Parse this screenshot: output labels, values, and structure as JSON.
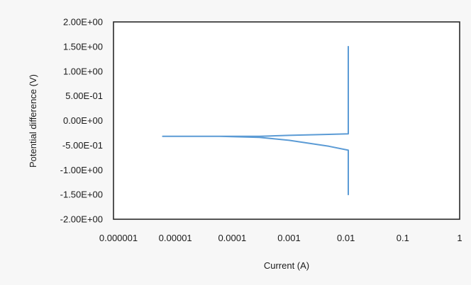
{
  "chart_data": {
    "type": "line",
    "title": "",
    "xlabel": "Current (A)",
    "ylabel": "Potential difference (V)",
    "x_scale": "log",
    "xlim": [
      1e-06,
      1
    ],
    "ylim": [
      -2.0,
      2.0
    ],
    "x_ticks": [
      {
        "value": 1e-06,
        "label": "0.000001"
      },
      {
        "value": 1e-05,
        "label": "0.00001"
      },
      {
        "value": 0.0001,
        "label": "0.0001"
      },
      {
        "value": 0.001,
        "label": "0.001"
      },
      {
        "value": 0.01,
        "label": "0.01"
      },
      {
        "value": 0.1,
        "label": "0.1"
      },
      {
        "value": 1,
        "label": "1"
      }
    ],
    "y_ticks": [
      {
        "value": 2.0,
        "label": "2.00E+00"
      },
      {
        "value": 1.5,
        "label": "1.50E+00"
      },
      {
        "value": 1.0,
        "label": "1.00E+00"
      },
      {
        "value": 0.5,
        "label": "5.00E-01"
      },
      {
        "value": 0.0,
        "label": "0.00E+00"
      },
      {
        "value": -0.5,
        "label": "-5.00E-01"
      },
      {
        "value": -1.0,
        "label": "-1.00E+00"
      },
      {
        "value": -1.5,
        "label": "-1.50E+00"
      },
      {
        "value": -2.0,
        "label": "-2.00E+00"
      }
    ],
    "grid": false,
    "legend": "none",
    "series": [
      {
        "color": "#5b9bd5",
        "points": [
          {
            "x": 0.011,
            "y": -1.5
          },
          {
            "x": 0.011,
            "y": -0.6
          },
          {
            "x": 0.005,
            "y": -0.52
          },
          {
            "x": 0.001,
            "y": -0.4
          },
          {
            "x": 0.0003,
            "y": -0.34
          },
          {
            "x": 6e-05,
            "y": -0.32
          },
          {
            "x": 6e-06,
            "y": -0.32
          },
          {
            "x": 6e-05,
            "y": -0.32
          },
          {
            "x": 0.0003,
            "y": -0.32
          },
          {
            "x": 0.001,
            "y": -0.3
          },
          {
            "x": 0.005,
            "y": -0.28
          },
          {
            "x": 0.011,
            "y": -0.27
          },
          {
            "x": 0.011,
            "y": 1.5
          }
        ]
      }
    ]
  }
}
